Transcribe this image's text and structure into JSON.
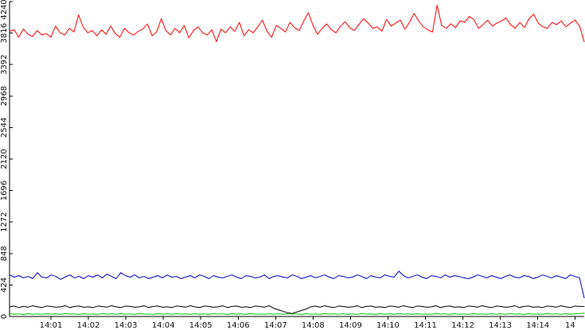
{
  "chart_data": {
    "type": "line",
    "x_ticks": [
      "14:01",
      "14:02",
      "14:03",
      "14:04",
      "14:05",
      "14:06",
      "14:07",
      "14:08",
      "14:09",
      "14:10",
      "14:11",
      "14:12",
      "14:13",
      "14:14",
      "14"
    ],
    "y_ticks": [
      0,
      424,
      848,
      1272,
      1696,
      2120,
      2544,
      2968,
      3392,
      3816,
      4240
    ],
    "ylim": [
      0,
      4240
    ],
    "grid": false,
    "series": [
      {
        "color": "#ff0000",
        "values": [
          3840,
          3860,
          3760,
          3870,
          3800,
          3770,
          3850,
          3790,
          3810,
          3760,
          3910,
          3820,
          3790,
          3880,
          3830,
          4060,
          3900,
          3820,
          3850,
          3780,
          3860,
          3800,
          3910,
          3810,
          3760,
          3880,
          3820,
          3790,
          3840,
          3870,
          3940,
          3780,
          3830,
          4010,
          3850,
          3790,
          3880,
          3820,
          3920,
          3750,
          3850,
          3900,
          3820,
          3790,
          3860,
          3700,
          3870,
          3820,
          3900,
          3840,
          3960,
          3780,
          3860,
          3820,
          3900,
          3990,
          3840,
          3760,
          3920,
          3880,
          3830,
          3960,
          3890,
          3850,
          3980,
          4090,
          3920,
          3800,
          3880,
          3940,
          3860,
          3820,
          3910,
          3970,
          3890,
          3850,
          3930,
          4010,
          3950,
          3880,
          3900,
          3840,
          4000,
          3910,
          3950,
          3990,
          3870,
          3960,
          4080,
          3980,
          3900,
          3860,
          3830,
          4190,
          3920,
          3880,
          3940,
          3890,
          3980,
          3960,
          4040,
          4000,
          3880,
          3930,
          3990,
          3910,
          3950,
          3980,
          4020,
          3930,
          3880,
          3960,
          3890,
          4010,
          4070,
          3950,
          3900,
          3880,
          3960,
          3930,
          3980,
          3900,
          3950,
          3990,
          3910,
          3700
        ]
      },
      {
        "color": "#0000cc",
        "values": [
          560,
          530,
          550,
          520,
          540,
          510,
          590,
          530,
          520,
          560,
          540,
          500,
          530,
          560,
          520,
          540,
          510,
          550,
          530,
          560,
          520,
          570,
          540,
          510,
          590,
          550,
          530,
          560,
          520,
          540,
          510,
          530,
          550,
          520,
          560,
          530,
          540,
          510,
          530,
          550,
          520,
          560,
          540,
          510,
          550,
          530,
          520,
          540,
          560,
          530,
          510,
          550,
          540,
          520,
          530,
          560,
          510,
          540,
          550,
          530,
          520,
          560,
          540,
          510,
          530,
          550,
          520,
          540,
          560,
          530,
          510,
          550,
          540,
          520,
          530,
          560,
          540,
          510,
          550,
          530,
          520,
          560,
          540,
          530,
          610,
          550,
          520,
          540,
          560,
          530,
          510,
          550,
          540,
          520,
          560,
          530,
          550,
          540,
          520,
          510,
          530,
          560,
          540,
          520,
          550,
          530,
          510,
          540,
          560,
          530,
          520,
          550,
          540,
          510,
          530,
          560,
          540,
          520,
          550,
          530,
          510,
          560,
          540,
          520,
          250
        ]
      },
      {
        "color": "#000000",
        "values": [
          130,
          140,
          120,
          135,
          125,
          145,
          130,
          120,
          140,
          135,
          125,
          130,
          145,
          120,
          135,
          140,
          125,
          130,
          120,
          140,
          135,
          125,
          145,
          130,
          120,
          140,
          135,
          125,
          130,
          145,
          120,
          135,
          140,
          125,
          130,
          120,
          140,
          135,
          125,
          145,
          130,
          120,
          140,
          135,
          125,
          130,
          145,
          120,
          135,
          140,
          125,
          130,
          120,
          140,
          135,
          125,
          145,
          110,
          90,
          70,
          50,
          40,
          60,
          80,
          100,
          130,
          140,
          125,
          145,
          130,
          120,
          140,
          135,
          125,
          130,
          145,
          120,
          135,
          140,
          125,
          130,
          120,
          140,
          135,
          125,
          145,
          130,
          120,
          140,
          135,
          125,
          130,
          145,
          120,
          135,
          140,
          125,
          130,
          120,
          140,
          135,
          125,
          145,
          130,
          120,
          140,
          135,
          125,
          130,
          145,
          120,
          135,
          140,
          125,
          130,
          120,
          140,
          135,
          125,
          145,
          130,
          120,
          140,
          135,
          135
        ]
      },
      {
        "color": "#00cc00",
        "values": [
          40,
          30,
          35,
          25,
          40,
          30,
          35,
          28,
          38,
          30,
          36,
          28,
          40,
          32,
          35,
          27,
          38,
          30,
          34,
          28,
          40,
          31,
          36,
          29,
          38,
          30,
          35,
          28,
          40,
          32,
          34,
          27,
          39,
          30,
          36,
          28,
          40,
          31,
          35,
          29,
          38,
          30,
          34,
          28,
          40,
          32,
          36,
          27,
          39,
          30,
          35,
          28,
          40,
          31,
          34,
          29,
          38,
          30,
          36,
          28,
          40,
          32,
          35,
          27,
          39,
          30,
          34,
          28,
          40,
          31,
          36,
          29,
          38,
          30,
          35,
          28,
          40,
          32,
          34,
          27,
          39,
          30,
          36,
          28,
          40,
          31,
          35,
          29,
          38,
          30,
          34,
          28,
          40,
          32,
          36,
          27,
          39,
          30,
          35,
          28,
          40,
          31,
          34,
          29,
          38,
          30,
          36,
          28,
          40,
          32,
          35,
          27,
          39,
          30,
          34,
          28,
          40,
          31,
          36,
          29,
          38,
          30,
          35,
          40,
          45
        ]
      }
    ]
  }
}
